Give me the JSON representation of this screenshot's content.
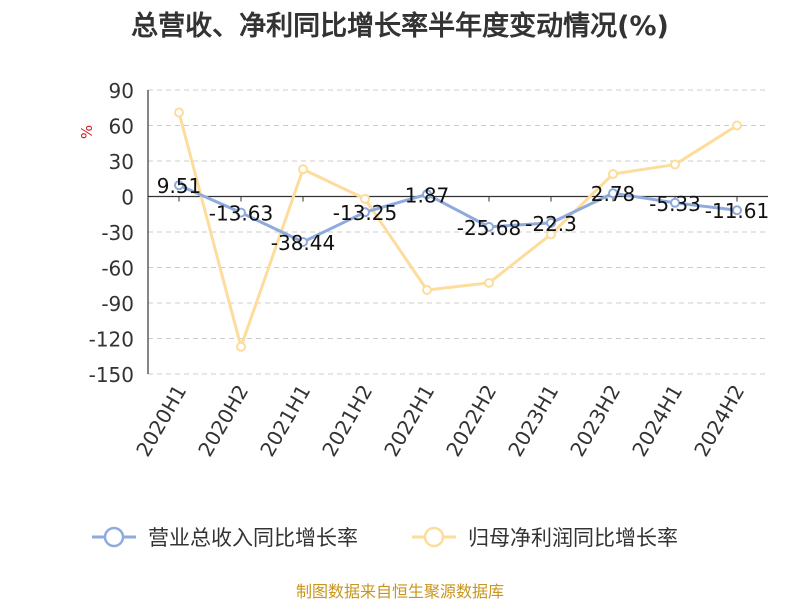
{
  "chart_data": {
    "type": "line",
    "title": "总营收、净利同比增长率半年度变动情况(%)",
    "ylabel": "%",
    "xlabel": "",
    "categories": [
      "2020H1",
      "2020H2",
      "2021H1",
      "2021H2",
      "2022H1",
      "2022H2",
      "2023H1",
      "2023H2",
      "2024H1",
      "2024H2"
    ],
    "ylim": [
      -150,
      90
    ],
    "yticks": [
      90,
      60,
      30,
      0,
      -30,
      -60,
      -90,
      -120,
      -150
    ],
    "grid": true,
    "legend_position": "bottom",
    "series": [
      {
        "name": "营业总收入同比增长率",
        "color": "#8faadc",
        "values": [
          9.51,
          -13.63,
          -38.44,
          -13.25,
          1.87,
          -25.68,
          -22.3,
          2.78,
          -5.33,
          -11.61
        ],
        "labels": [
          "9.51",
          "-13.63",
          "-38.44",
          "-13.25",
          "1.87",
          "-25.68",
          "-22.3",
          "2.78",
          "-5.33",
          "-11.61"
        ]
      },
      {
        "name": "归母净利润同比增长率",
        "color": "#fddc9c",
        "values": [
          71,
          -127,
          23,
          -2,
          -79,
          -73,
          -32,
          19,
          27,
          60
        ]
      }
    ]
  },
  "footer": {
    "source": "制图数据来自恒生聚源数据库"
  }
}
